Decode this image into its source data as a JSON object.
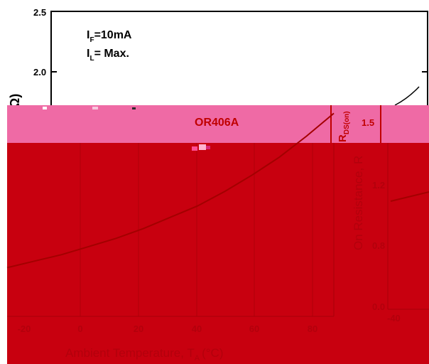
{
  "chart_data": [
    {
      "type": "line",
      "title": "",
      "xlabel": "Ambient Temperature, T",
      "xlabel_sub": "A",
      "xlabel_unit": "(°C)",
      "ylabel": "(Ω)",
      "xlim": [
        -40,
        80
      ],
      "ylim": [
        0.0,
        2.5
      ],
      "x_ticks": [
        -20,
        0,
        20,
        40,
        60
      ],
      "x_tick_labels": [
        "-20",
        "0",
        "20",
        "40",
        "60"
      ],
      "y_ticks": [
        2.0,
        2.5
      ],
      "y_tick_labels": [
        "2.0",
        "2.5"
      ],
      "conditions": [
        "I_F=10mA",
        "I_L= Max."
      ],
      "condition_lines": [
        {
          "main": "I",
          "sub": "F",
          "rest": "=10mA"
        },
        {
          "main": "I",
          "sub": "L",
          "rest": "= Max."
        }
      ],
      "annotations": [
        "OR406A"
      ],
      "grid": true,
      "series": [
        {
          "name": "OR406A",
          "color": "#c00000",
          "x": [
            -40,
            -30,
            -20,
            -10,
            0,
            10,
            20,
            30,
            40,
            50,
            60,
            70,
            80
          ],
          "y": [
            0.8,
            0.84,
            0.88,
            0.93,
            0.98,
            1.04,
            1.11,
            1.18,
            1.27,
            1.37,
            1.48,
            1.61,
            1.75
          ]
        }
      ]
    },
    {
      "type": "line",
      "title": "",
      "ylabel": "On Resistance, R",
      "ylabel_sub": "DS(on)",
      "xlim": [
        -40,
        0
      ],
      "ylim": [
        0.0,
        2.0
      ],
      "x_ticks": [
        -40
      ],
      "x_tick_labels": [
        "-40"
      ],
      "y_ticks": [
        0.0,
        0.4,
        0.8,
        1.2,
        1.5
      ],
      "y_tick_labels": [
        "0.0",
        "0.4",
        "0.8",
        "1.2",
        "1.5"
      ],
      "grid": true,
      "series": [
        {
          "color": "#c00000",
          "x": [
            -40,
            -30
          ],
          "y": [
            0.55,
            0.62
          ]
        }
      ]
    }
  ],
  "colors": {
    "overlay_pink": "#ef6aa5",
    "overlay_red": "#c8000f",
    "curve": "#c00000",
    "annotation": "#c00000"
  }
}
